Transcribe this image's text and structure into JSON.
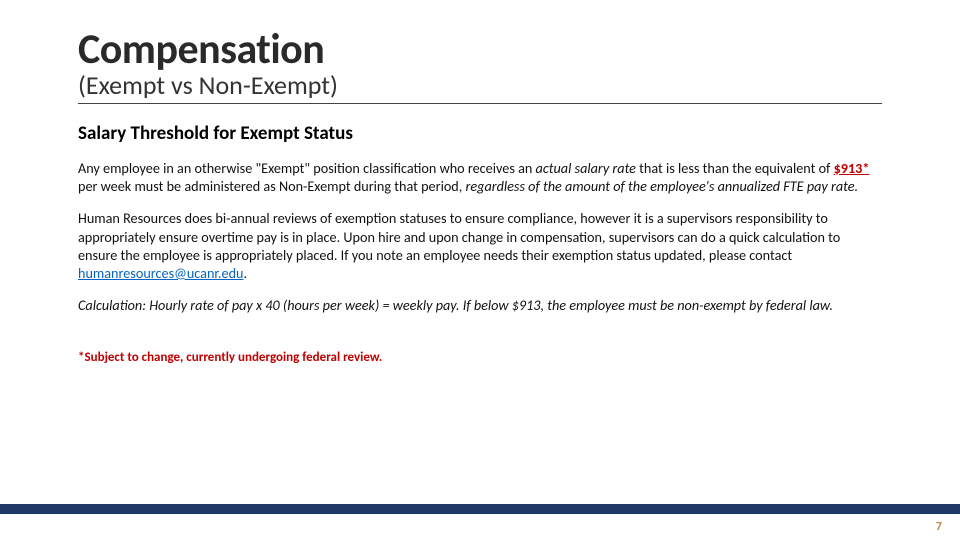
{
  "colors": {
    "title": "#2a2a2a",
    "subtitle": "#333333",
    "body": "#111111",
    "red": "#c00000",
    "link": "#0563c1",
    "footer_bar": "#1f3a67",
    "page_number": "#b58a3f",
    "hr": "#444444"
  },
  "title": "Compensation",
  "subtitle": "(Exempt vs Non-Exempt)",
  "section_heading": "Salary Threshold for Exempt Status",
  "p1": {
    "a": "Any employee in an otherwise \"Exempt\" position classification who receives an ",
    "b": "actual salary rate",
    "c": " that is less than the equivalent of ",
    "d": "$913*",
    "e": " per week must be administered as Non-Exempt during that period, ",
    "f": "regardless of the amount of the employee's annualized FTE pay rate."
  },
  "p2": {
    "a": "Human Resources does bi-annual reviews of exemption statuses to ensure compliance, however it is a supervisors responsibility to appropriately ensure overtime pay is in place.  Upon hire and upon change in compensation, supervisors can do a quick calculation to ensure the employee is appropriately placed.  If you note an employee needs their exemption status updated, please contact ",
    "link_text": "humanresources@ucanr.edu",
    "b": "."
  },
  "p3": "Calculation: Hourly rate of pay x 40 (hours per week) = weekly pay.  If below $913, the employee must be non-exempt by federal law.",
  "footnote": "*Subject to change, currently undergoing federal review.",
  "page_number": "7"
}
